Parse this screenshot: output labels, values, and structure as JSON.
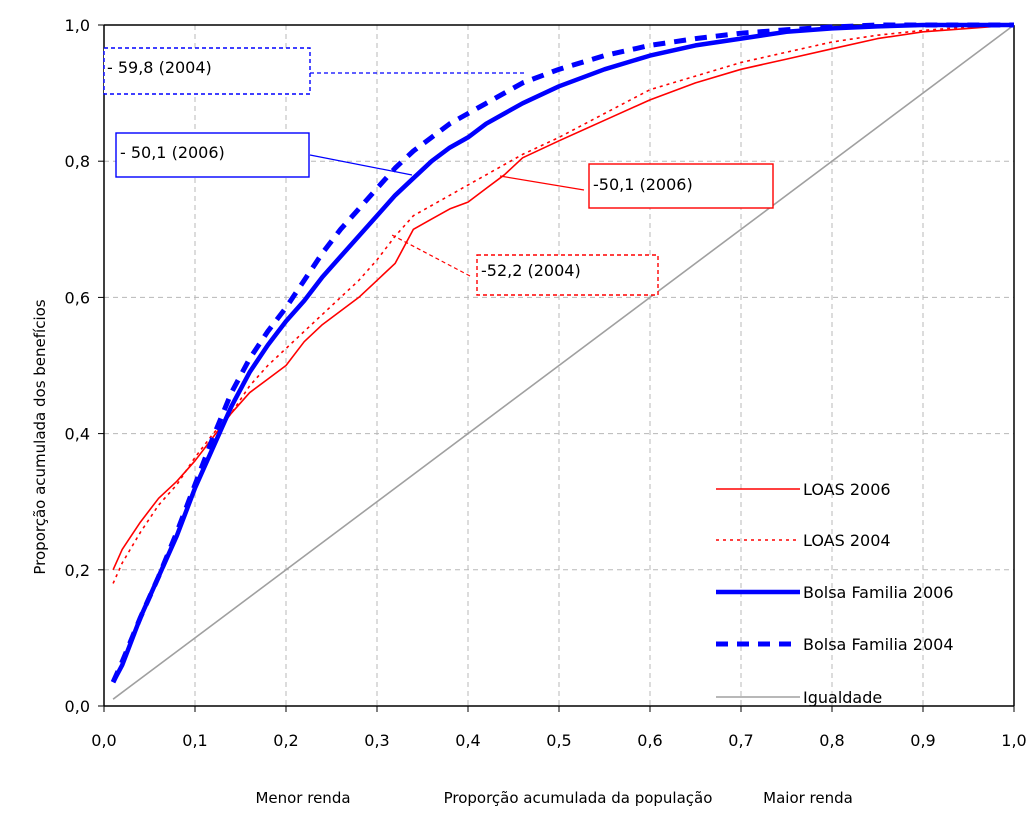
{
  "chart_data": {
    "type": "line",
    "title": "",
    "xlabel": "Proporção acumulada da população",
    "xlabel_left": "Menor renda",
    "xlabel_right": "Maior renda",
    "ylabel": "Proporção acumulada dos benefícios",
    "xlim": [
      0,
      1
    ],
    "ylim": [
      0,
      1
    ],
    "grid": true,
    "legend_position": "bottom-right",
    "x_ticks": [
      "0,0",
      "0,1",
      "0,2",
      "0,3",
      "0,4",
      "0,5",
      "0,6",
      "0,7",
      "0,8",
      "0,9",
      "1,0"
    ],
    "y_ticks": [
      "0,0",
      "0,2",
      "0,4",
      "0,6",
      "0,8",
      "1,0"
    ],
    "series": [
      {
        "name": "LOAS 2006",
        "color": "#ff0000",
        "style": "solid",
        "x": [
          0.01,
          0.02,
          0.04,
          0.06,
          0.08,
          0.1,
          0.12,
          0.14,
          0.16,
          0.18,
          0.2,
          0.22,
          0.24,
          0.26,
          0.28,
          0.3,
          0.32,
          0.34,
          0.36,
          0.38,
          0.4,
          0.42,
          0.44,
          0.46,
          0.5,
          0.55,
          0.6,
          0.65,
          0.7,
          0.75,
          0.8,
          0.85,
          0.9,
          0.95,
          1.0
        ],
        "y": [
          0.2,
          0.23,
          0.27,
          0.305,
          0.33,
          0.36,
          0.395,
          0.43,
          0.46,
          0.48,
          0.5,
          0.535,
          0.56,
          0.58,
          0.6,
          0.625,
          0.65,
          0.7,
          0.715,
          0.73,
          0.74,
          0.76,
          0.78,
          0.805,
          0.83,
          0.86,
          0.89,
          0.915,
          0.935,
          0.95,
          0.965,
          0.98,
          0.99,
          0.995,
          1.0
        ]
      },
      {
        "name": "LOAS 2004",
        "color": "#ff0000",
        "style": "dotted",
        "x": [
          0.01,
          0.02,
          0.04,
          0.06,
          0.08,
          0.1,
          0.12,
          0.14,
          0.16,
          0.18,
          0.2,
          0.22,
          0.24,
          0.26,
          0.28,
          0.3,
          0.32,
          0.34,
          0.36,
          0.38,
          0.4,
          0.42,
          0.44,
          0.46,
          0.5,
          0.55,
          0.6,
          0.65,
          0.7,
          0.75,
          0.8,
          0.85,
          0.9,
          0.95,
          1.0
        ],
        "y": [
          0.18,
          0.21,
          0.255,
          0.295,
          0.325,
          0.365,
          0.4,
          0.43,
          0.47,
          0.5,
          0.525,
          0.55,
          0.575,
          0.6,
          0.625,
          0.655,
          0.69,
          0.72,
          0.735,
          0.75,
          0.765,
          0.78,
          0.795,
          0.81,
          0.835,
          0.87,
          0.905,
          0.925,
          0.945,
          0.96,
          0.975,
          0.985,
          0.992,
          0.997,
          1.0
        ]
      },
      {
        "name": "Bolsa Familia 2006",
        "color": "#0000ff",
        "style": "solid-thick",
        "x": [
          0.01,
          0.02,
          0.04,
          0.06,
          0.08,
          0.1,
          0.12,
          0.14,
          0.16,
          0.18,
          0.2,
          0.22,
          0.24,
          0.26,
          0.28,
          0.3,
          0.32,
          0.34,
          0.36,
          0.38,
          0.4,
          0.42,
          0.44,
          0.46,
          0.5,
          0.55,
          0.6,
          0.65,
          0.7,
          0.75,
          0.8,
          0.85,
          0.9,
          0.95,
          1.0
        ],
        "y": [
          0.035,
          0.06,
          0.13,
          0.19,
          0.25,
          0.32,
          0.38,
          0.44,
          0.49,
          0.53,
          0.565,
          0.595,
          0.63,
          0.66,
          0.69,
          0.72,
          0.75,
          0.775,
          0.8,
          0.82,
          0.835,
          0.855,
          0.87,
          0.885,
          0.91,
          0.935,
          0.955,
          0.97,
          0.98,
          0.99,
          0.995,
          0.998,
          1.0,
          1.0,
          1.0
        ]
      },
      {
        "name": "Bolsa Familia 2004",
        "color": "#0000ff",
        "style": "dashed-thick",
        "x": [
          0.01,
          0.02,
          0.04,
          0.06,
          0.08,
          0.1,
          0.12,
          0.14,
          0.16,
          0.18,
          0.2,
          0.22,
          0.24,
          0.26,
          0.28,
          0.3,
          0.32,
          0.34,
          0.36,
          0.38,
          0.4,
          0.42,
          0.44,
          0.46,
          0.5,
          0.55,
          0.6,
          0.65,
          0.7,
          0.75,
          0.8,
          0.85,
          0.9,
          0.95,
          1.0
        ],
        "y": [
          0.035,
          0.065,
          0.13,
          0.19,
          0.255,
          0.325,
          0.395,
          0.46,
          0.51,
          0.55,
          0.585,
          0.625,
          0.665,
          0.7,
          0.73,
          0.76,
          0.79,
          0.815,
          0.835,
          0.855,
          0.87,
          0.885,
          0.9,
          0.915,
          0.935,
          0.955,
          0.97,
          0.98,
          0.988,
          0.993,
          0.997,
          1.0,
          1.0,
          1.0,
          1.0
        ]
      },
      {
        "name": "Igualdade",
        "color": "#a0a0a0",
        "style": "solid",
        "x": [
          0.01,
          1.0
        ],
        "y": [
          0.01,
          1.0
        ]
      }
    ],
    "annotations": [
      {
        "text": "- 59,8 (2004)",
        "color": "#0000ff",
        "style": "dashed"
      },
      {
        "text": "- 50,1 (2006)",
        "color": "#0000ff",
        "style": "solid"
      },
      {
        "text": "-50,1 (2006)",
        "color": "#ff0000",
        "style": "solid"
      },
      {
        "text": "-52,2 (2004)",
        "color": "#ff0000",
        "style": "dashed"
      }
    ]
  }
}
